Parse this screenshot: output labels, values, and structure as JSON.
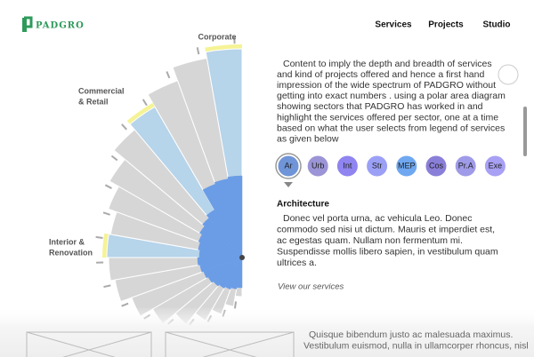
{
  "logo": "PADGRO",
  "nav": [
    "Services",
    "Projects",
    "Studio"
  ],
  "diagram": {
    "sector_labels": [
      [
        "Corporate"
      ],
      [
        "Commercial",
        "& Retail"
      ],
      [
        "Interior &",
        "Renovation"
      ]
    ]
  },
  "intro": [
    "Content to imply the depth and breadth of services",
    "and kind of projects offered and hence a first hand",
    "impression of the wide spectrum of PADGRO without",
    "getting into exact numbers . using a polar area diagram",
    "showing sectors that PADGRO has worked in and",
    "highlight the services offered per sector, one at a time",
    "based on what the user selects from legend of services",
    "as given below"
  ],
  "legend": [
    "Ar",
    "Urb",
    "Int",
    "Str",
    "MEP",
    "Cos",
    "Pr.A",
    "Exe"
  ],
  "section": {
    "title": "Architecture",
    "body": [
      "Donec vel porta urna, ac vehicula Leo. Donec",
      "commodo sed nisi ut dictum. Mauris et imperdiet est,",
      "ac egestas quam. Nullam non fermentum mi.",
      "Suspendisse mollis libero sapien, in vestibulum quam",
      "ultrices a."
    ],
    "link": "View our services"
  },
  "footer": [
    "Quisque bibendum justo ac malesuada maximus.",
    "Vestibulum euismod, nulla in ullamcorper rhoncus, nisl"
  ]
}
